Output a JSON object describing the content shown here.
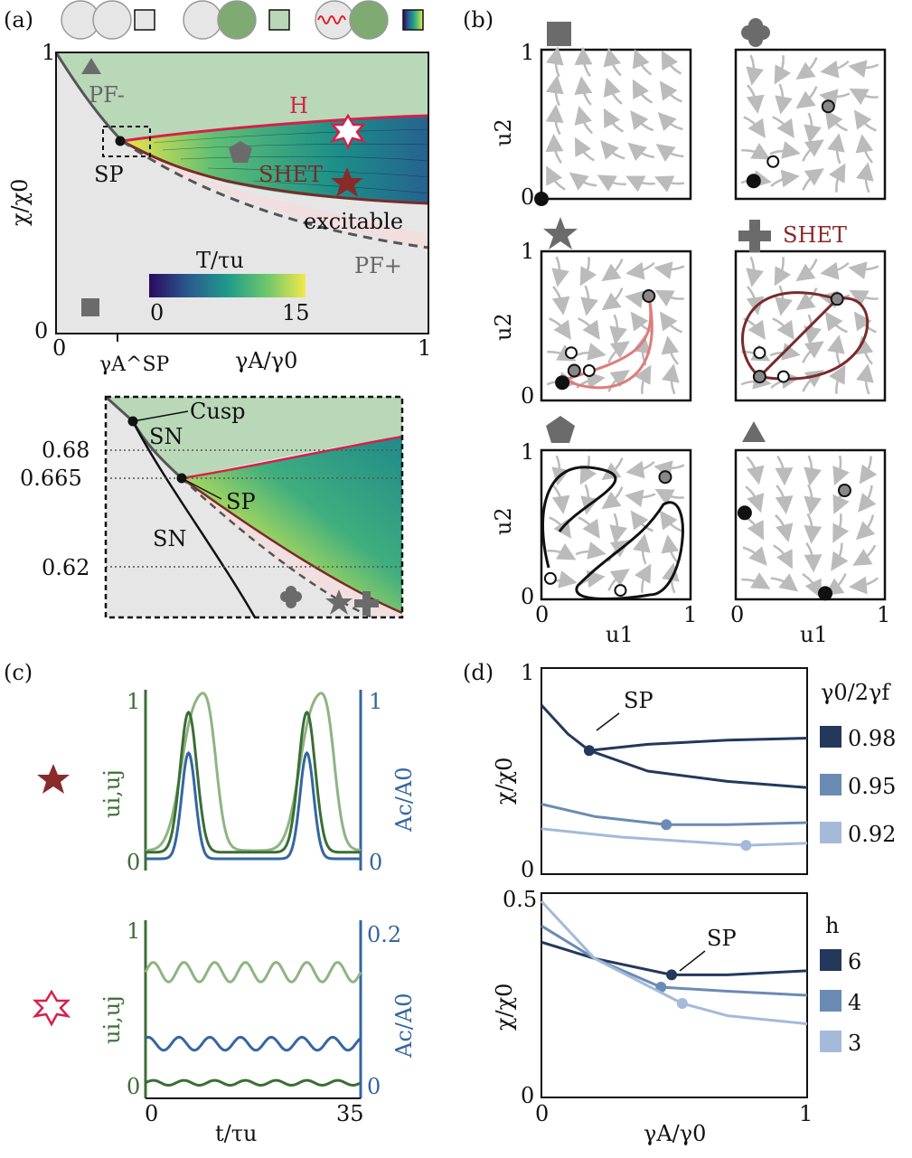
{
  "panels": {
    "a": {
      "label": "(a)",
      "y_tick_1": "1",
      "y_tick_0": "0",
      "x_tick_0": "0",
      "x_tick_1": "1",
      "ylabel": "χ/χ0",
      "xlabel": "γA/γ0",
      "x_sp_label": "γA^SP",
      "regions": {
        "pf_minus": "PF-",
        "pf_plus": "PF+",
        "h": "H",
        "shet": "SHET",
        "excitable": "excitable",
        "sp": "SP"
      },
      "colorbar": {
        "title": "T/τu",
        "min": "0",
        "max": "15"
      },
      "legend_boxes": [
        "grey",
        "green",
        "gradient"
      ]
    },
    "a_zoom": {
      "y_ticks": [
        "0.68",
        "0.665",
        "0.62"
      ],
      "labels": {
        "cusp": "Cusp",
        "sn_top": "SN",
        "sp": "SP",
        "sn_bottom": "SN"
      }
    },
    "b": {
      "label": "(b)",
      "ylabel": "u2",
      "xlabel": "u1",
      "tick_0": "0",
      "tick_1": "1",
      "shet_label": "SHET"
    },
    "c": {
      "label": "(c)",
      "top": {
        "left_label": "ui,uj",
        "right_label": "Ac/A0",
        "left_ticks": [
          "1",
          "0"
        ],
        "right_ticks": [
          "1",
          "0"
        ]
      },
      "bottom": {
        "left_label": "ui,uj",
        "right_label": "Ac/A0",
        "left_ticks": [
          "1",
          "0"
        ],
        "right_ticks": [
          "0.2",
          "0"
        ]
      },
      "x_ticks": [
        "0",
        "35"
      ],
      "xlabel": "t/τu"
    },
    "d": {
      "label": "(d)",
      "top": {
        "ylabel": "χ/χ0",
        "y_tick_top": "1",
        "y_tick_bottom": "0",
        "legend_title": "γ0/2γf",
        "legend": [
          "0.98",
          "0.95",
          "0.92"
        ],
        "sp": "SP"
      },
      "bottom": {
        "ylabel": "χ/χ0",
        "y_tick_top": "0.5",
        "y_tick_bottom": "0",
        "legend_title": "h",
        "legend": [
          "6",
          "4",
          "3"
        ],
        "sp": "SP"
      },
      "x_ticks": [
        "0",
        "1"
      ],
      "xlabel": "γA/γ0"
    }
  },
  "colors": {
    "green_region": "#b8d8b8",
    "grey_region": "#e6e6e6",
    "pink_region": "#f1dede",
    "h_curve": "#d6204a",
    "shet_curve": "#7a2a2a",
    "u_dark": "#3b6e35",
    "u_light": "#8fb483",
    "a_blue": "#3566a0",
    "navy": "#24385c",
    "mid_blue": "#6a8bb4",
    "light_blue": "#a5bad9",
    "marker_grey": "#6b6b6b"
  },
  "chart_data": [
    {
      "type": "line",
      "title": "",
      "xlabel": "γA/γ0",
      "ylabel": "χ/χ0",
      "xlim": [
        0,
        1
      ],
      "ylim": [
        0,
        0.9
      ],
      "series": [
        {
          "name": "0.98",
          "x": [
            0,
            0.1,
            0.18,
            0.4,
            0.7,
            1.0
          ],
          "y": [
            0.82,
            0.68,
            0.6,
            0.63,
            0.65,
            0.66
          ],
          "branch": "upper"
        },
        {
          "name": "0.98",
          "x": [
            0.18,
            0.4,
            0.7,
            1.0
          ],
          "y": [
            0.6,
            0.5,
            0.45,
            0.42
          ],
          "branch": "lower"
        },
        {
          "name": "0.95",
          "x": [
            0,
            0.2,
            0.47,
            0.7,
            1.0
          ],
          "y": [
            0.34,
            0.28,
            0.24,
            0.24,
            0.25
          ]
        },
        {
          "name": "0.92",
          "x": [
            0,
            0.3,
            0.77,
            1.0
          ],
          "y": [
            0.22,
            0.18,
            0.14,
            0.15
          ]
        }
      ]
    },
    {
      "type": "line",
      "title": "",
      "xlabel": "γA/γ0",
      "ylabel": "χ/χ0",
      "xlim": [
        0,
        1
      ],
      "ylim": [
        0,
        0.5
      ],
      "series": [
        {
          "name": "6",
          "x": [
            0,
            0.2,
            0.49,
            0.7,
            1.0
          ],
          "y": [
            0.38,
            0.34,
            0.3,
            0.3,
            0.31
          ]
        },
        {
          "name": "4",
          "x": [
            0,
            0.2,
            0.45,
            0.7,
            1.0
          ],
          "y": [
            0.42,
            0.34,
            0.27,
            0.26,
            0.25
          ]
        },
        {
          "name": "3",
          "x": [
            0,
            0.2,
            0.53,
            0.7,
            1.0
          ],
          "y": [
            0.48,
            0.34,
            0.23,
            0.2,
            0.18
          ]
        }
      ]
    }
  ]
}
